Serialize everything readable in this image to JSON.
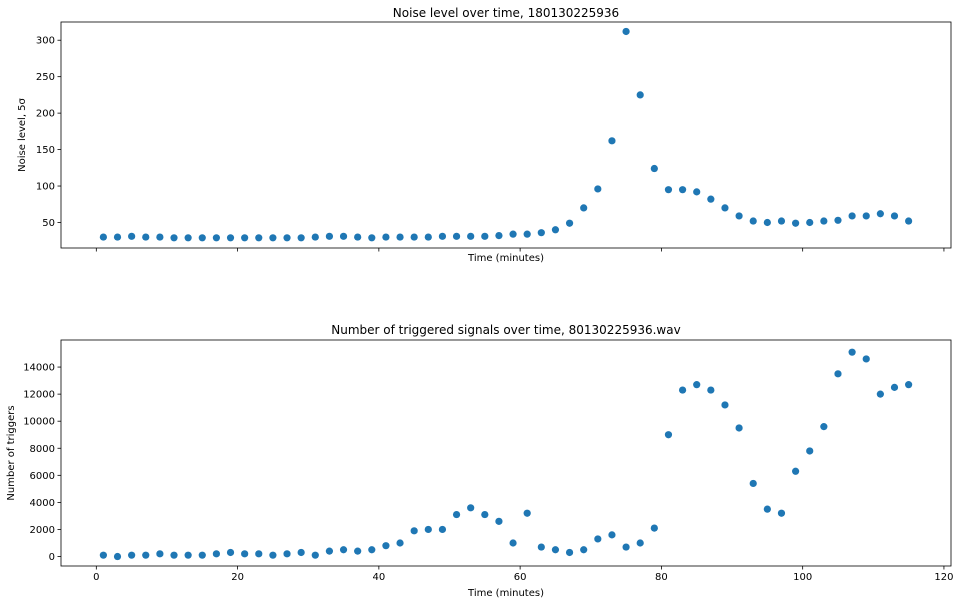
{
  "chart_data": [
    {
      "type": "scatter",
      "title": "Noise level over time, 180130225936",
      "xlabel": "Time (minutes)",
      "ylabel": "Noise level, 5σ",
      "xlim": [
        -5,
        121
      ],
      "ylim": [
        15,
        325
      ],
      "xticks": [
        0,
        20,
        40,
        60,
        80,
        100,
        120
      ],
      "show_xtick_labels": false,
      "yticks": [
        50,
        100,
        150,
        200,
        250,
        300
      ],
      "color": "#1f77b4",
      "x": [
        1,
        3,
        5,
        7,
        9,
        11,
        13,
        15,
        17,
        19,
        21,
        23,
        25,
        27,
        29,
        31,
        33,
        35,
        37,
        39,
        41,
        43,
        45,
        47,
        49,
        51,
        53,
        55,
        57,
        59,
        61,
        63,
        65,
        67,
        69,
        71,
        73,
        75,
        77,
        79,
        81,
        83,
        85,
        87,
        89,
        91,
        93,
        95,
        97,
        99,
        101,
        103,
        105,
        107,
        109,
        111,
        113,
        115
      ],
      "y": [
        30,
        30,
        31,
        30,
        30,
        29,
        29,
        29,
        29,
        29,
        29,
        29,
        29,
        29,
        29,
        30,
        31,
        31,
        30,
        29,
        30,
        30,
        30,
        30,
        31,
        31,
        31,
        31,
        32,
        34,
        34,
        36,
        40,
        49,
        70,
        96,
        162,
        312,
        225,
        124,
        95,
        95,
        92,
        82,
        70,
        59,
        52,
        50,
        52,
        49,
        50,
        52,
        53,
        59,
        59,
        62,
        59,
        52
      ]
    },
    {
      "type": "scatter",
      "title": "Number of triggered signals over time, 80130225936.wav",
      "xlabel": "Time (minutes)",
      "ylabel": "Number of triggers",
      "xlim": [
        -5,
        121
      ],
      "ylim": [
        -700,
        16000
      ],
      "xticks": [
        0,
        20,
        40,
        60,
        80,
        100,
        120
      ],
      "show_xtick_labels": true,
      "yticks": [
        0,
        2000,
        4000,
        6000,
        8000,
        10000,
        12000,
        14000
      ],
      "color": "#1f77b4",
      "x": [
        1,
        3,
        5,
        7,
        9,
        11,
        13,
        15,
        17,
        19,
        21,
        23,
        25,
        27,
        29,
        31,
        33,
        35,
        37,
        39,
        41,
        43,
        45,
        47,
        49,
        51,
        53,
        55,
        57,
        59,
        61,
        63,
        65,
        67,
        69,
        71,
        73,
        75,
        77,
        79,
        81,
        83,
        85,
        87,
        89,
        91,
        93,
        95,
        97,
        99,
        101,
        103,
        105,
        107,
        109,
        111,
        113,
        115
      ],
      "y": [
        100,
        0,
        100,
        100,
        200,
        100,
        100,
        100,
        200,
        300,
        200,
        200,
        100,
        200,
        300,
        100,
        400,
        500,
        400,
        500,
        800,
        1000,
        1900,
        2000,
        2000,
        3100,
        3600,
        3100,
        2600,
        1000,
        3200,
        700,
        500,
        300,
        500,
        1300,
        1600,
        700,
        1000,
        2100,
        9000,
        12300,
        12700,
        12300,
        11200,
        9500,
        5400,
        3500,
        3200,
        6300,
        7800,
        9600,
        13500,
        15100,
        14600,
        12000,
        12500,
        12700
      ]
    }
  ]
}
